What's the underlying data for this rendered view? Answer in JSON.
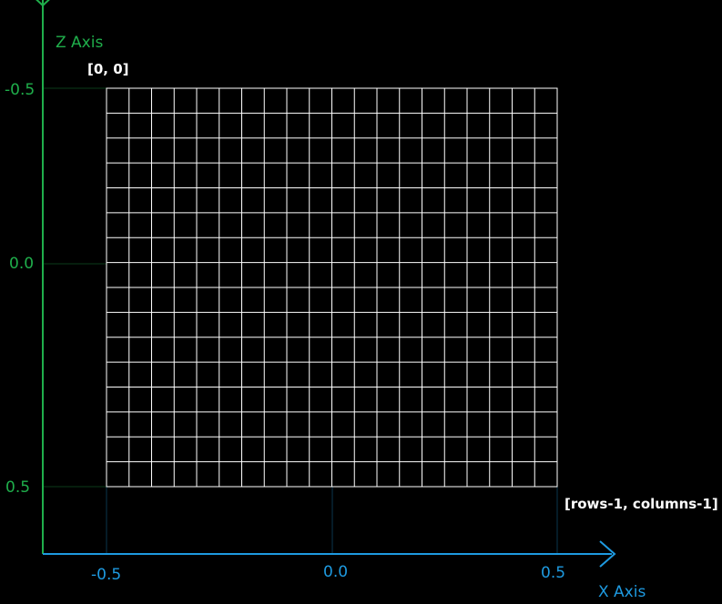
{
  "labels": {
    "z_axis": "Z Axis",
    "x_axis": "X Axis",
    "top_left_corner": "[0, 0]",
    "bottom_right_corner": "[rows-1, columns-1]"
  },
  "z_ticks": [
    "-0.5",
    "0.0",
    "0.5"
  ],
  "x_ticks": [
    "-0.5",
    "0.0",
    "0.5"
  ],
  "grid": {
    "rows": 16,
    "columns": 20
  },
  "colors": {
    "background": "#000000",
    "z_axis": "#1fae4b",
    "x_axis": "#1e9ae0",
    "grid_lines": "#ffffff",
    "corner_labels": "#ffffff"
  }
}
